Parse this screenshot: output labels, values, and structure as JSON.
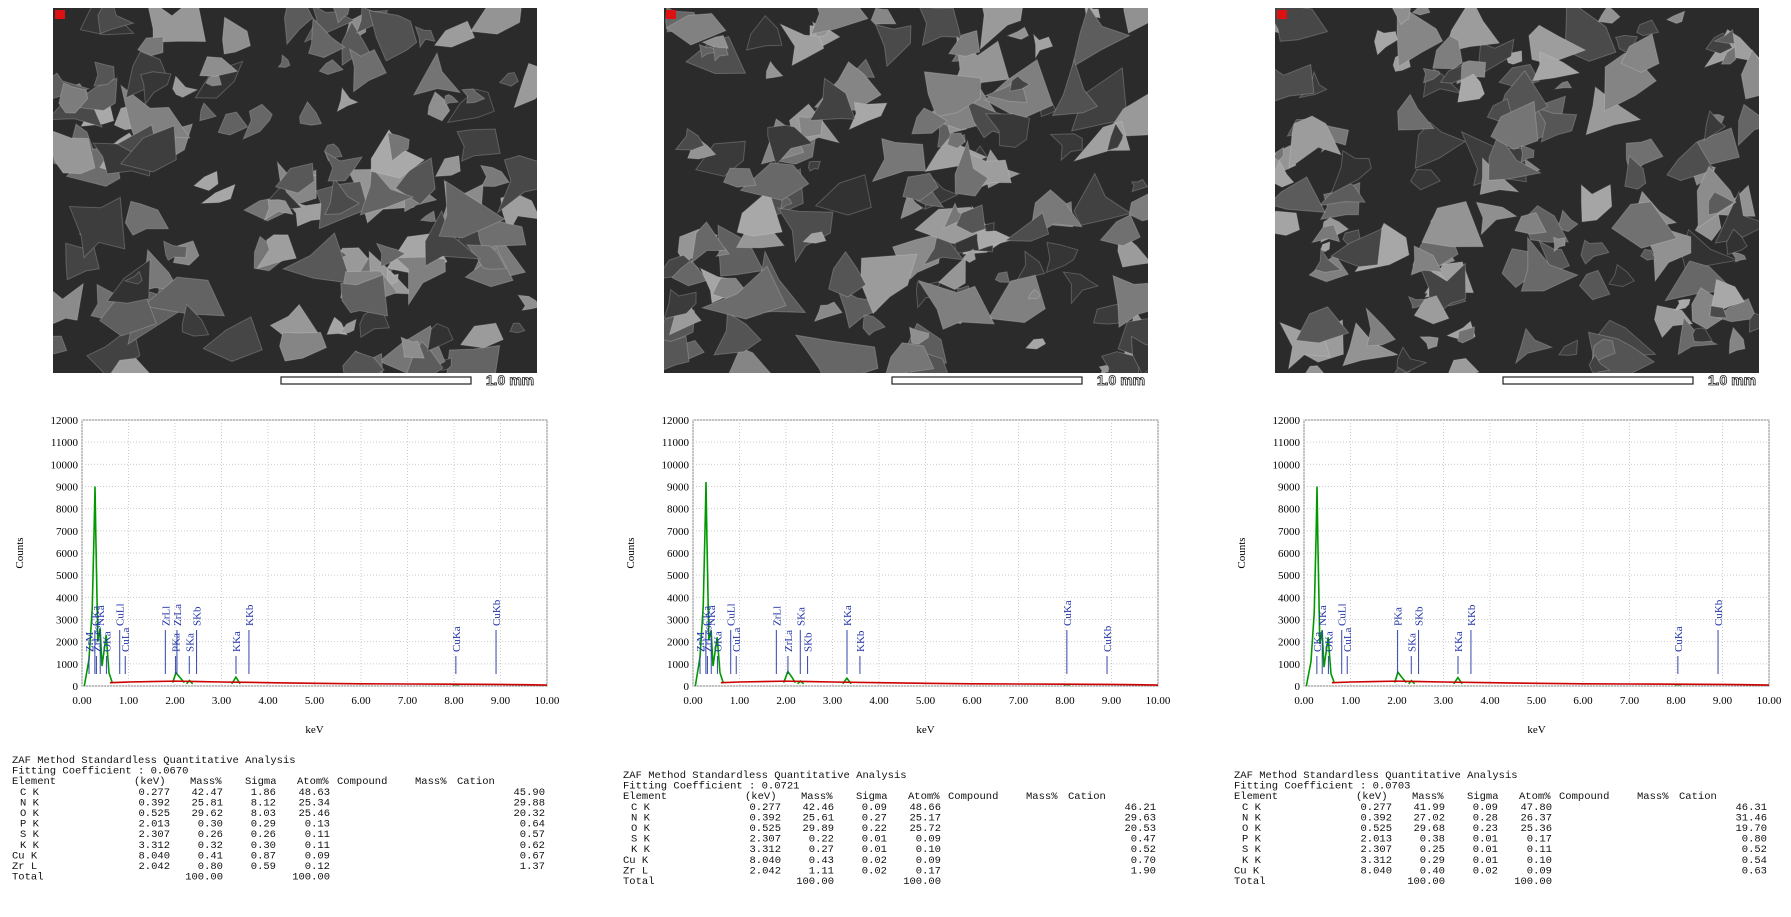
{
  "sem_images": [
    {
      "scale_label": "1.0 mm"
    },
    {
      "scale_label": "1.0 mm"
    },
    {
      "scale_label": "1.0 mm"
    }
  ],
  "chart_data": [
    {
      "type": "line",
      "xlabel": "keV",
      "ylabel": "Counts",
      "xlim": [
        0,
        10
      ],
      "ylim": [
        0,
        12000
      ],
      "xticks": [
        {
          "value": 0,
          "label": "0.00"
        },
        {
          "value": 1,
          "label": "1.00"
        },
        {
          "value": 2,
          "label": "2.00"
        },
        {
          "value": 3,
          "label": "3.00"
        },
        {
          "value": 4,
          "label": "4.00"
        },
        {
          "value": 5,
          "label": "5.00"
        },
        {
          "value": 6,
          "label": "6.00"
        },
        {
          "value": 7,
          "label": "7.00"
        },
        {
          "value": 8,
          "label": "8.00"
        },
        {
          "value": 9,
          "label": "9.00"
        },
        {
          "value": 10,
          "label": "10.00"
        }
      ],
      "yticks": [
        0,
        1000,
        2000,
        3000,
        4000,
        5000,
        6000,
        7000,
        8000,
        9000,
        10000,
        11000,
        12000
      ],
      "grid": true,
      "series": [
        {
          "color": "#009900",
          "x": [
            0.05,
            0.15,
            0.22,
            0.26,
            0.28,
            0.3,
            0.34,
            0.39,
            0.43,
            0.52,
            0.58,
            0.65,
            1.3,
            1.95,
            2.02,
            2.1,
            2.2,
            2.23,
            2.25,
            2.31,
            2.38,
            2.8,
            3.22,
            3.31,
            3.4,
            5.7,
            7.98,
            8.04,
            8.1
          ],
          "values": [
            0,
            1200,
            3500,
            7000,
            9000,
            6500,
            2000,
            2600,
            900,
            2300,
            600,
            150,
            null,
            150,
            600,
            400,
            150,
            null,
            100,
            250,
            100,
            null,
            100,
            400,
            100,
            null,
            40,
            80,
            40
          ]
        },
        {
          "color": "#cc0000",
          "x": [
            0.6,
            1,
            1.5,
            2,
            2.5,
            3,
            4,
            5,
            6,
            7,
            8,
            9,
            9.5,
            10
          ],
          "values": [
            150,
            180,
            200,
            220,
            200,
            180,
            150,
            120,
            100,
            90,
            80,
            70,
            60,
            40
          ]
        }
      ],
      "annotations": [
        {
          "label": "ZrM",
          "x": 0.151
        },
        {
          "label": "CKa",
          "x": 0.277
        },
        {
          "label": "ZrLesc",
          "x": 0.31
        },
        {
          "label": "NKa",
          "x": 0.392
        },
        {
          "label": "OKa",
          "x": 0.525
        },
        {
          "label": "CuLl",
          "x": 0.811
        },
        {
          "label": "CuLa",
          "x": 0.93
        },
        {
          "label": "ZrLl",
          "x": 1.792
        },
        {
          "label": "PKa",
          "x": 2.013
        },
        {
          "label": "ZrLa",
          "x": 2.042
        },
        {
          "label": "SKa",
          "x": 2.307
        },
        {
          "label": "SKb",
          "x": 2.464
        },
        {
          "label": "KKa",
          "x": 3.312
        },
        {
          "label": "KKb",
          "x": 3.59
        },
        {
          "label": "CuKa",
          "x": 8.04
        },
        {
          "label": "CuKb",
          "x": 8.904
        }
      ]
    },
    {
      "type": "line",
      "xlabel": "keV",
      "ylabel": "Counts",
      "xlim": [
        0,
        10
      ],
      "ylim": [
        0,
        12000
      ],
      "xticks": [
        {
          "value": 0,
          "label": "0.00"
        },
        {
          "value": 1,
          "label": "1.00"
        },
        {
          "value": 2,
          "label": "2.00"
        },
        {
          "value": 3,
          "label": "3.00"
        },
        {
          "value": 4,
          "label": "4.00"
        },
        {
          "value": 5,
          "label": "5.00"
        },
        {
          "value": 6,
          "label": "6.00"
        },
        {
          "value": 7,
          "label": "7.00"
        },
        {
          "value": 8,
          "label": "8.00"
        },
        {
          "value": 9,
          "label": "9.00"
        },
        {
          "value": 10,
          "label": "10.00"
        }
      ],
      "yticks": [
        0,
        1000,
        2000,
        3000,
        4000,
        5000,
        6000,
        7000,
        8000,
        9000,
        10000,
        11000,
        12000
      ],
      "grid": true,
      "series": [
        {
          "color": "#009900",
          "x": [
            0.05,
            0.15,
            0.22,
            0.26,
            0.28,
            0.3,
            0.34,
            0.39,
            0.43,
            0.52,
            0.58,
            0.65,
            1.3,
            1.95,
            2.04,
            2.12,
            2.2,
            2.23,
            2.25,
            2.31,
            2.38,
            2.8,
            3.22,
            3.31,
            3.4,
            5.7,
            7.98,
            8.04,
            8.1
          ],
          "values": [
            0,
            1300,
            3600,
            7200,
            9200,
            6600,
            2100,
            2500,
            900,
            2200,
            600,
            150,
            null,
            150,
            650,
            420,
            150,
            null,
            100,
            220,
            100,
            null,
            100,
            350,
            100,
            null,
            40,
            80,
            40
          ]
        },
        {
          "color": "#cc0000",
          "x": [
            0.6,
            1,
            1.5,
            2,
            2.5,
            3,
            4,
            5,
            6,
            7,
            8,
            9,
            9.5,
            10
          ],
          "values": [
            150,
            180,
            200,
            220,
            200,
            180,
            150,
            120,
            100,
            90,
            80,
            70,
            60,
            40
          ]
        }
      ],
      "annotations": [
        {
          "label": "ZrM",
          "x": 0.151
        },
        {
          "label": "CKa",
          "x": 0.277
        },
        {
          "label": "ZrLesc",
          "x": 0.31
        },
        {
          "label": "NKa",
          "x": 0.392
        },
        {
          "label": "OKa",
          "x": 0.525
        },
        {
          "label": "CuLl",
          "x": 0.811
        },
        {
          "label": "CuLa",
          "x": 0.93
        },
        {
          "label": "ZrLl",
          "x": 1.792
        },
        {
          "label": "ZrLa",
          "x": 2.042
        },
        {
          "label": "SKa",
          "x": 2.307
        },
        {
          "label": "SKb",
          "x": 2.464
        },
        {
          "label": "KKa",
          "x": 3.312
        },
        {
          "label": "KKb",
          "x": 3.59
        },
        {
          "label": "CuKa",
          "x": 8.04
        },
        {
          "label": "CuKb",
          "x": 8.904
        }
      ]
    },
    {
      "type": "line",
      "xlabel": "keV",
      "ylabel": "Counts",
      "xlim": [
        0,
        10
      ],
      "ylim": [
        0,
        12000
      ],
      "xticks": [
        {
          "value": 0,
          "label": "0.00"
        },
        {
          "value": 1,
          "label": "1.00"
        },
        {
          "value": 2,
          "label": "2.00"
        },
        {
          "value": 3,
          "label": "3.00"
        },
        {
          "value": 4,
          "label": "4.00"
        },
        {
          "value": 5,
          "label": "5.00"
        },
        {
          "value": 6,
          "label": "6.00"
        },
        {
          "value": 7,
          "label": "7.00"
        },
        {
          "value": 8,
          "label": "8.00"
        },
        {
          "value": 9,
          "label": "9.00"
        },
        {
          "value": 10,
          "label": "10.00"
        }
      ],
      "yticks": [
        0,
        1000,
        2000,
        3000,
        4000,
        5000,
        6000,
        7000,
        8000,
        9000,
        10000,
        11000,
        12000
      ],
      "grid": true,
      "series": [
        {
          "color": "#009900",
          "x": [
            0.05,
            0.15,
            0.22,
            0.26,
            0.28,
            0.3,
            0.34,
            0.39,
            0.43,
            0.52,
            0.58,
            0.65,
            1.3,
            1.95,
            2.02,
            2.1,
            2.2,
            2.23,
            2.25,
            2.31,
            2.38,
            2.8,
            3.22,
            3.31,
            3.4,
            5.7,
            7.98,
            8.04,
            8.1
          ],
          "values": [
            0,
            1100,
            3300,
            6800,
            9000,
            6300,
            1900,
            2500,
            850,
            2200,
            550,
            150,
            null,
            150,
            620,
            400,
            150,
            null,
            100,
            240,
            100,
            null,
            100,
            380,
            100,
            null,
            40,
            80,
            40
          ]
        },
        {
          "color": "#cc0000",
          "x": [
            0.6,
            1,
            1.5,
            2,
            2.5,
            3,
            4,
            5,
            6,
            7,
            8,
            9,
            9.5,
            10
          ],
          "values": [
            150,
            180,
            200,
            220,
            200,
            180,
            150,
            120,
            100,
            90,
            80,
            70,
            60,
            40
          ]
        }
      ],
      "annotations": [
        {
          "label": "CKa",
          "x": 0.277
        },
        {
          "label": "NKa",
          "x": 0.392
        },
        {
          "label": "OKa",
          "x": 0.525
        },
        {
          "label": "CuLl",
          "x": 0.811
        },
        {
          "label": "CuLa",
          "x": 0.93
        },
        {
          "label": "PKa",
          "x": 2.013
        },
        {
          "label": "SKa",
          "x": 2.307
        },
        {
          "label": "SKb",
          "x": 2.464
        },
        {
          "label": "KKa",
          "x": 3.312
        },
        {
          "label": "KKb",
          "x": 3.59
        },
        {
          "label": "CuKa",
          "x": 8.04
        },
        {
          "label": "CuKb",
          "x": 8.904
        }
      ]
    }
  ],
  "tables": [
    {
      "title": "ZAF Method Standardless Quantitative Analysis",
      "fitting": "Fitting Coefficient : 0.0670",
      "header": [
        "Element",
        "(keV)",
        "Mass%",
        "Sigma",
        "Atom%",
        "Compound",
        "Mass%",
        "Cation"
      ],
      "rows": [
        [
          "C K",
          "0.277",
          "42.47",
          "1.86",
          "48.63",
          "45.90"
        ],
        [
          "N K",
          "0.392",
          "25.81",
          "8.12",
          "25.34",
          "29.88"
        ],
        [
          "O K",
          "0.525",
          "29.62",
          "8.03",
          "25.46",
          "20.32"
        ],
        [
          "P K",
          "2.013",
          "0.30",
          "0.29",
          "0.13",
          "0.64"
        ],
        [
          "S K",
          "2.307",
          "0.26",
          "0.26",
          "0.11",
          "0.57"
        ],
        [
          "K K",
          "3.312",
          "0.32",
          "0.30",
          "0.11",
          "0.62"
        ],
        [
          "Cu K",
          "8.040",
          "0.41",
          "0.87",
          "0.09",
          "0.67"
        ],
        [
          "Zr L",
          "2.042",
          "0.80",
          "0.59",
          "0.12",
          "1.37"
        ]
      ],
      "total": {
        "label": "Total",
        "mass": "100.00",
        "atom": "100.00"
      }
    },
    {
      "title": "ZAF Method Standardless Quantitative Analysis",
      "fitting": "Fitting Coefficient : 0.0721",
      "header": [
        "Element",
        "(keV)",
        "Mass%",
        "Sigma",
        "Atom%",
        "Compound",
        "Mass%",
        "Cation"
      ],
      "rows": [
        [
          "C K",
          "0.277",
          "42.46",
          "0.09",
          "48.66",
          "46.21"
        ],
        [
          "N K",
          "0.392",
          "25.61",
          "0.27",
          "25.17",
          "29.63"
        ],
        [
          "O K",
          "0.525",
          "29.89",
          "0.22",
          "25.72",
          "20.53"
        ],
        [
          "S K",
          "2.307",
          "0.22",
          "0.01",
          "0.09",
          "0.47"
        ],
        [
          "K K",
          "3.312",
          "0.27",
          "0.01",
          "0.10",
          "0.52"
        ],
        [
          "Cu K",
          "8.040",
          "0.43",
          "0.02",
          "0.09",
          "0.70"
        ],
        [
          "Zr L",
          "2.042",
          "1.11",
          "0.02",
          "0.17",
          "1.90"
        ]
      ],
      "total": {
        "label": "Total",
        "mass": "100.00",
        "atom": "100.00"
      }
    },
    {
      "title": "ZAF Method Standardless Quantitative Analysis",
      "fitting": "Fitting Coefficient : 0.0703",
      "header": [
        "Element",
        "(keV)",
        "Mass%",
        "Sigma",
        "Atom%",
        "Compound",
        "Mass%",
        "Cation"
      ],
      "rows": [
        [
          "C K",
          "0.277",
          "41.99",
          "0.09",
          "47.80",
          "46.31"
        ],
        [
          "N K",
          "0.392",
          "27.02",
          "0.28",
          "26.37",
          "31.46"
        ],
        [
          "O K",
          "0.525",
          "29.68",
          "0.23",
          "25.36",
          "19.70"
        ],
        [
          "P K",
          "2.013",
          "0.38",
          "0.01",
          "0.17",
          "0.80"
        ],
        [
          "S K",
          "2.307",
          "0.25",
          "0.01",
          "0.11",
          "0.52"
        ],
        [
          "K K",
          "3.312",
          "0.29",
          "0.01",
          "0.10",
          "0.54"
        ],
        [
          "Cu K",
          "8.040",
          "0.40",
          "0.02",
          "0.09",
          "0.63"
        ]
      ],
      "total": {
        "label": "Total",
        "mass": "100.00",
        "atom": "100.00"
      }
    }
  ]
}
